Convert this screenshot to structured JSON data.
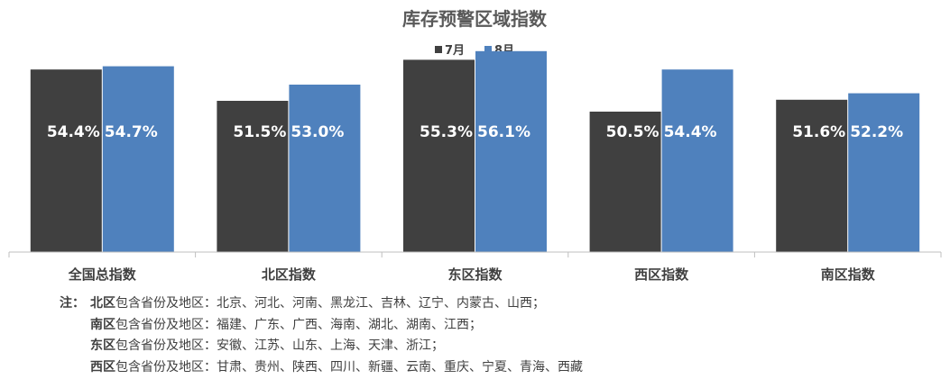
{
  "chart_data": {
    "type": "bar",
    "title": "库存预警区域指数",
    "categories": [
      "全国总指数",
      "北区指数",
      "东区指数",
      "西区指数",
      "南区指数"
    ],
    "series": [
      {
        "name": "7月",
        "values": [
          54.4,
          51.5,
          55.3,
          50.5,
          51.6
        ],
        "labels": [
          "54.4%",
          "51.5%",
          "55.3%",
          "50.5%",
          "51.6%"
        ],
        "color": "#404040"
      },
      {
        "name": "8月",
        "values": [
          54.7,
          53.0,
          56.1,
          54.4,
          52.2
        ],
        "labels": [
          "54.7%",
          "53.0%",
          "56.1%",
          "54.4%",
          "52.2%"
        ],
        "color": "#4f81bd"
      }
    ],
    "ylim": [
      37.5,
      57.5
    ],
    "grid": false,
    "legend": "top-center",
    "axis_color": "#bfbfbf"
  },
  "notes": {
    "prefix": "注：",
    "lines": [
      {
        "region": "北区",
        "text": "包含省份及地区：北京、河北、河南、黑龙江、吉林、辽宁、内蒙古、山西；"
      },
      {
        "region": "南区",
        "text": "包含省份及地区：福建、广东、广西、海南、湖北、湖南、江西；"
      },
      {
        "region": "东区",
        "text": "包含省份及地区：安徽、江苏、山东、上海、天津、浙江；"
      },
      {
        "region": "西区",
        "text": "包含省份及地区：甘肃、贵州、陕西、四川、新疆、云南、重庆、宁夏、青海、西藏"
      }
    ]
  }
}
